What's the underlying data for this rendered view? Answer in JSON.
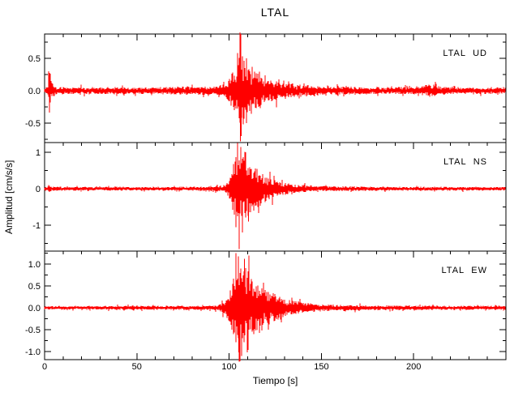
{
  "chart_data": {
    "type": "line",
    "subtype": "seismogram",
    "title": "LTAL",
    "xlabel": "Tiempo [s]",
    "ylabel": "Amplitud [cm/s/s]",
    "x_range": [
      0,
      250
    ],
    "x_major_ticks": [
      0,
      50,
      100,
      150,
      200
    ],
    "x_tick_labels": [
      "0",
      "50",
      "100",
      "150",
      "200"
    ],
    "x_minor_step": 10,
    "grid": false,
    "trace_color": "#ff0000",
    "axis_color": "#000000",
    "background_color": "#ffffff",
    "series": [
      {
        "name": "LTAL  UD",
        "station": "LTAL",
        "component": "UD",
        "ylim": [
          -0.8,
          0.875
        ],
        "y_major_ticks": [
          0.5,
          0.0,
          -0.5
        ],
        "y_tick_labels": [
          "0.5",
          "0.0",
          "-0.5"
        ],
        "y_minor_step": 0.25,
        "envelope": [
          [
            0,
            0.05
          ],
          [
            1.8,
            0.06
          ],
          [
            2.4,
            0.3
          ],
          [
            3.2,
            0.22
          ],
          [
            4.5,
            0.1
          ],
          [
            6,
            0.06
          ],
          [
            15,
            0.05
          ],
          [
            30,
            0.055
          ],
          [
            50,
            0.05
          ],
          [
            70,
            0.055
          ],
          [
            78,
            0.07
          ],
          [
            82,
            0.06
          ],
          [
            90,
            0.06
          ],
          [
            95,
            0.08
          ],
          [
            98,
            0.11
          ],
          [
            100,
            0.18
          ],
          [
            102,
            0.32
          ],
          [
            104,
            0.45
          ],
          [
            106,
            0.6
          ],
          [
            108,
            0.48
          ],
          [
            110,
            0.42
          ],
          [
            113,
            0.34
          ],
          [
            116,
            0.28
          ],
          [
            120,
            0.22
          ],
          [
            125,
            0.16
          ],
          [
            130,
            0.12
          ],
          [
            138,
            0.09
          ],
          [
            150,
            0.07
          ],
          [
            165,
            0.06
          ],
          [
            185,
            0.05
          ],
          [
            203,
            0.06
          ],
          [
            207,
            0.09
          ],
          [
            211,
            0.08
          ],
          [
            216,
            0.06
          ],
          [
            230,
            0.05
          ],
          [
            250,
            0.05
          ]
        ],
        "spikes": [
          [
            2.3,
            0.3
          ],
          [
            2.7,
            -0.34
          ],
          [
            3.1,
            0.26
          ],
          [
            104.6,
            0.58
          ],
          [
            105.9,
            0.9
          ],
          [
            106.2,
            -0.78
          ],
          [
            106.5,
            -0.7
          ],
          [
            107.6,
            -0.52
          ],
          [
            109.3,
            0.5
          ]
        ]
      },
      {
        "name": "LTAL  NS",
        "station": "LTAL",
        "component": "NS",
        "ylim": [
          -1.711,
          1.267
        ],
        "y_major_ticks": [
          1,
          0,
          -1
        ],
        "y_tick_labels": [
          "1",
          "0",
          "-1"
        ],
        "y_minor_step": 0.5,
        "envelope": [
          [
            0,
            0.05
          ],
          [
            1.6,
            0.07
          ],
          [
            2.2,
            0.13
          ],
          [
            3.5,
            0.07
          ],
          [
            10,
            0.05
          ],
          [
            30,
            0.05
          ],
          [
            55,
            0.05
          ],
          [
            80,
            0.055
          ],
          [
            90,
            0.06
          ],
          [
            95,
            0.08
          ],
          [
            98,
            0.12
          ],
          [
            100,
            0.25
          ],
          [
            102,
            0.6
          ],
          [
            104,
            0.95
          ],
          [
            106,
            1.0
          ],
          [
            108,
            0.9
          ],
          [
            110,
            0.75
          ],
          [
            112,
            0.62
          ],
          [
            115,
            0.5
          ],
          [
            118,
            0.4
          ],
          [
            121,
            0.32
          ],
          [
            125,
            0.24
          ],
          [
            128,
            0.18
          ],
          [
            131,
            0.16
          ],
          [
            135,
            0.12
          ],
          [
            140,
            0.1
          ],
          [
            147,
            0.08
          ],
          [
            155,
            0.07
          ],
          [
            170,
            0.06
          ],
          [
            190,
            0.05
          ],
          [
            220,
            0.05
          ],
          [
            250,
            0.05
          ]
        ],
        "spikes": [
          [
            103.7,
            -1.05
          ],
          [
            104.6,
            1.26
          ],
          [
            105.4,
            -1.66
          ],
          [
            106.3,
            1.15
          ],
          [
            107.2,
            -1.2
          ],
          [
            108.9,
            1.0
          ],
          [
            110.5,
            -0.9
          ]
        ]
      },
      {
        "name": "LTAL  EW",
        "station": "LTAL",
        "component": "EW",
        "ylim": [
          -1.185,
          1.296
        ],
        "y_major_ticks": [
          1.0,
          0.5,
          0.0,
          -0.5,
          -1.0
        ],
        "y_tick_labels": [
          "1.0",
          "0.5",
          "0.0",
          "-0.5",
          "-1.0"
        ],
        "y_minor_step": 0.25,
        "envelope": [
          [
            0,
            0.04
          ],
          [
            20,
            0.04
          ],
          [
            45,
            0.045
          ],
          [
            70,
            0.045
          ],
          [
            88,
            0.05
          ],
          [
            93,
            0.06
          ],
          [
            96,
            0.1
          ],
          [
            98,
            0.18
          ],
          [
            100,
            0.35
          ],
          [
            102,
            0.65
          ],
          [
            104,
            0.9
          ],
          [
            107,
            0.95
          ],
          [
            110,
            0.8
          ],
          [
            113,
            0.65
          ],
          [
            116,
            0.55
          ],
          [
            119,
            0.45
          ],
          [
            123,
            0.35
          ],
          [
            127,
            0.27
          ],
          [
            131,
            0.2
          ],
          [
            136,
            0.15
          ],
          [
            142,
            0.11
          ],
          [
            150,
            0.08
          ],
          [
            160,
            0.065
          ],
          [
            175,
            0.055
          ],
          [
            200,
            0.05
          ],
          [
            225,
            0.045
          ],
          [
            250,
            0.045
          ]
        ],
        "spikes": [
          [
            103.8,
            1.25
          ],
          [
            104.9,
            1.18
          ],
          [
            105.2,
            -1.02
          ],
          [
            105.8,
            -1.22
          ],
          [
            106.8,
            -1.1
          ],
          [
            108.4,
            1.12
          ],
          [
            110.2,
            -0.96
          ]
        ]
      }
    ]
  }
}
